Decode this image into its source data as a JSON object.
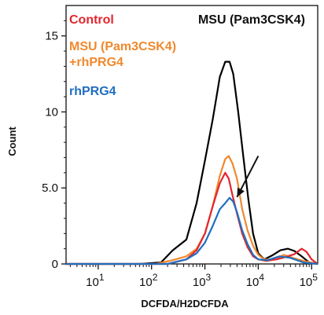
{
  "chart_data": {
    "type": "line",
    "title": "MSU (Pam3CSK4)",
    "xlabel": "DCFDA/H2DCFDA",
    "ylabel": "Count",
    "xscale": "log",
    "xlim": [
      2.5,
      130000
    ],
    "ylim": [
      0,
      17
    ],
    "x_ticks": [
      {
        "value": 10,
        "base": "10",
        "exp": "1"
      },
      {
        "value": 100,
        "base": "10",
        "exp": "2"
      },
      {
        "value": 1000,
        "base": "10",
        "exp": "3"
      },
      {
        "value": 10000,
        "base": "10",
        "exp": "4"
      },
      {
        "value": 100000,
        "base": "10",
        "exp": "5"
      }
    ],
    "y_ticks": [
      {
        "value": 0,
        "label": "0"
      },
      {
        "value": 5,
        "label": "5.0"
      },
      {
        "value": 10,
        "label": "10"
      },
      {
        "value": 15,
        "label": "15"
      }
    ],
    "grid": false,
    "legend_position": "top-left",
    "legend_lines": [
      {
        "text": "Control",
        "color": "#e3262d"
      },
      {
        "text": "MSU (Pam3CSK4)",
        "color": "#f0892e"
      },
      {
        "text": "+rhPRG4",
        "color": "#f0892e"
      },
      {
        "text": "rhPRG4",
        "color": "#1f6fc0"
      }
    ],
    "series": [
      {
        "name": "MSU (Pam3CSK4)",
        "color": "#000000",
        "points": [
          [
            2.5,
            0
          ],
          [
            60,
            0
          ],
          [
            150,
            0.1
          ],
          [
            250,
            0.9
          ],
          [
            450,
            1.6
          ],
          [
            700,
            4.0
          ],
          [
            1000,
            6.8
          ],
          [
            1400,
            9.5
          ],
          [
            1900,
            12.3
          ],
          [
            2400,
            13.3
          ],
          [
            2900,
            13.3
          ],
          [
            3400,
            12.5
          ],
          [
            4200,
            10.0
          ],
          [
            5200,
            7.2
          ],
          [
            6500,
            4.3
          ],
          [
            8000,
            2.0
          ],
          [
            10000,
            0.7
          ],
          [
            13000,
            0.3
          ],
          [
            18000,
            0.55
          ],
          [
            26000,
            0.9
          ],
          [
            36000,
            1.0
          ],
          [
            48000,
            0.85
          ],
          [
            65000,
            0.5
          ],
          [
            90000,
            0.1
          ],
          [
            130000,
            0
          ]
        ]
      },
      {
        "name": "MSU (Pam3CSK4)+rhPRG4",
        "color": "#f0892e",
        "points": [
          [
            2.5,
            0
          ],
          [
            120,
            0
          ],
          [
            250,
            0.25
          ],
          [
            450,
            0.5
          ],
          [
            700,
            1.0
          ],
          [
            1000,
            2.0
          ],
          [
            1400,
            3.8
          ],
          [
            1900,
            5.8
          ],
          [
            2400,
            6.9
          ],
          [
            2800,
            7.1
          ],
          [
            3300,
            6.6
          ],
          [
            4000,
            5.6
          ],
          [
            5000,
            3.6
          ],
          [
            6300,
            2.2
          ],
          [
            8000,
            1.2
          ],
          [
            10000,
            0.6
          ],
          [
            13000,
            0.3
          ],
          [
            20000,
            0.3
          ],
          [
            30000,
            0.6
          ],
          [
            45000,
            0.4
          ],
          [
            70000,
            0.2
          ],
          [
            130000,
            0
          ]
        ]
      },
      {
        "name": "Control",
        "color": "#e3262d",
        "points": [
          [
            2.5,
            0
          ],
          [
            200,
            0
          ],
          [
            450,
            0.3
          ],
          [
            700,
            0.9
          ],
          [
            1000,
            2.0
          ],
          [
            1400,
            3.8
          ],
          [
            1900,
            5.3
          ],
          [
            2400,
            6.0
          ],
          [
            2800,
            5.6
          ],
          [
            3300,
            4.5
          ],
          [
            4000,
            3.3
          ],
          [
            5000,
            2.0
          ],
          [
            6300,
            1.1
          ],
          [
            8000,
            0.5
          ],
          [
            10000,
            0.3
          ],
          [
            14000,
            0.2
          ],
          [
            22000,
            0.3
          ],
          [
            32000,
            0.45
          ],
          [
            48000,
            0.65
          ],
          [
            65000,
            1.0
          ],
          [
            80000,
            0.8
          ],
          [
            100000,
            0.3
          ],
          [
            130000,
            0
          ]
        ]
      },
      {
        "name": "rhPRG4",
        "color": "#1f6fc0",
        "points": [
          [
            2.5,
            0
          ],
          [
            200,
            0
          ],
          [
            450,
            0.3
          ],
          [
            700,
            0.7
          ],
          [
            1000,
            1.4
          ],
          [
            1400,
            2.5
          ],
          [
            1900,
            3.6
          ],
          [
            2400,
            4.0
          ],
          [
            2900,
            4.35
          ],
          [
            3400,
            4.1
          ],
          [
            4000,
            3.4
          ],
          [
            5000,
            2.2
          ],
          [
            6300,
            1.3
          ],
          [
            8000,
            0.6
          ],
          [
            10000,
            0.3
          ],
          [
            15000,
            0.25
          ],
          [
            25000,
            0.5
          ],
          [
            40000,
            0.4
          ],
          [
            70000,
            0.1
          ],
          [
            130000,
            0
          ]
        ]
      }
    ],
    "annotations": [
      {
        "type": "arrow",
        "from": [
          10000,
          7.1
        ],
        "to": [
          4000,
          4.4
        ]
      }
    ]
  }
}
